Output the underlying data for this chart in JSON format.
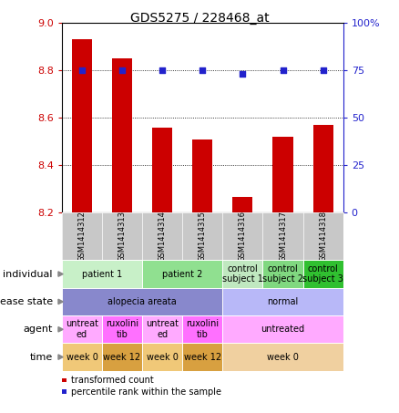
{
  "title": "GDS5275 / 228468_at",
  "samples": [
    "GSM1414312",
    "GSM1414313",
    "GSM1414314",
    "GSM1414315",
    "GSM1414316",
    "GSM1414317",
    "GSM1414318"
  ],
  "bar_values": [
    8.93,
    8.85,
    8.56,
    8.51,
    8.265,
    8.52,
    8.57
  ],
  "dot_values": [
    75,
    75,
    75,
    75,
    73,
    75,
    75
  ],
  "ylim_left": [
    8.2,
    9.0
  ],
  "ylim_right": [
    0,
    100
  ],
  "yticks_left": [
    8.2,
    8.4,
    8.6,
    8.8,
    9.0
  ],
  "yticks_right": [
    0,
    25,
    50,
    75,
    100
  ],
  "bar_color": "#cc0000",
  "dot_color": "#2222cc",
  "bar_bottom": 8.2,
  "annotation_rows": [
    {
      "label": "individual",
      "cells": [
        {
          "text": "patient 1",
          "colspan": 2,
          "color": "#c8f0c8"
        },
        {
          "text": "patient 2",
          "colspan": 2,
          "color": "#90e090"
        },
        {
          "text": "control\nsubject 1",
          "colspan": 1,
          "color": "#c0e8c0"
        },
        {
          "text": "control\nsubject 2",
          "colspan": 1,
          "color": "#80d880"
        },
        {
          "text": "control\nsubject 3",
          "colspan": 1,
          "color": "#30c030"
        }
      ]
    },
    {
      "label": "disease state",
      "cells": [
        {
          "text": "alopecia areata",
          "colspan": 4,
          "color": "#8888cc"
        },
        {
          "text": "normal",
          "colspan": 3,
          "color": "#b8b8f8"
        }
      ]
    },
    {
      "label": "agent",
      "cells": [
        {
          "text": "untreat\ned",
          "colspan": 1,
          "color": "#ffaaff"
        },
        {
          "text": "ruxolini\ntib",
          "colspan": 1,
          "color": "#ff70ff"
        },
        {
          "text": "untreat\ned",
          "colspan": 1,
          "color": "#ffaaff"
        },
        {
          "text": "ruxolini\ntib",
          "colspan": 1,
          "color": "#ff70ff"
        },
        {
          "text": "untreated",
          "colspan": 3,
          "color": "#ffaaff"
        }
      ]
    },
    {
      "label": "time",
      "cells": [
        {
          "text": "week 0",
          "colspan": 1,
          "color": "#f0c878"
        },
        {
          "text": "week 12",
          "colspan": 1,
          "color": "#d8a040"
        },
        {
          "text": "week 0",
          "colspan": 1,
          "color": "#f0c878"
        },
        {
          "text": "week 12",
          "colspan": 1,
          "color": "#d8a040"
        },
        {
          "text": "week 0",
          "colspan": 3,
          "color": "#f0d0a0"
        }
      ]
    }
  ],
  "legend": [
    {
      "color": "#cc0000",
      "label": "transformed count"
    },
    {
      "color": "#2222cc",
      "label": "percentile rank within the sample"
    }
  ],
  "sample_bg_color": "#c8c8c8",
  "label_fontsize": 8,
  "cell_fontsize": 7,
  "sample_fontsize": 6
}
